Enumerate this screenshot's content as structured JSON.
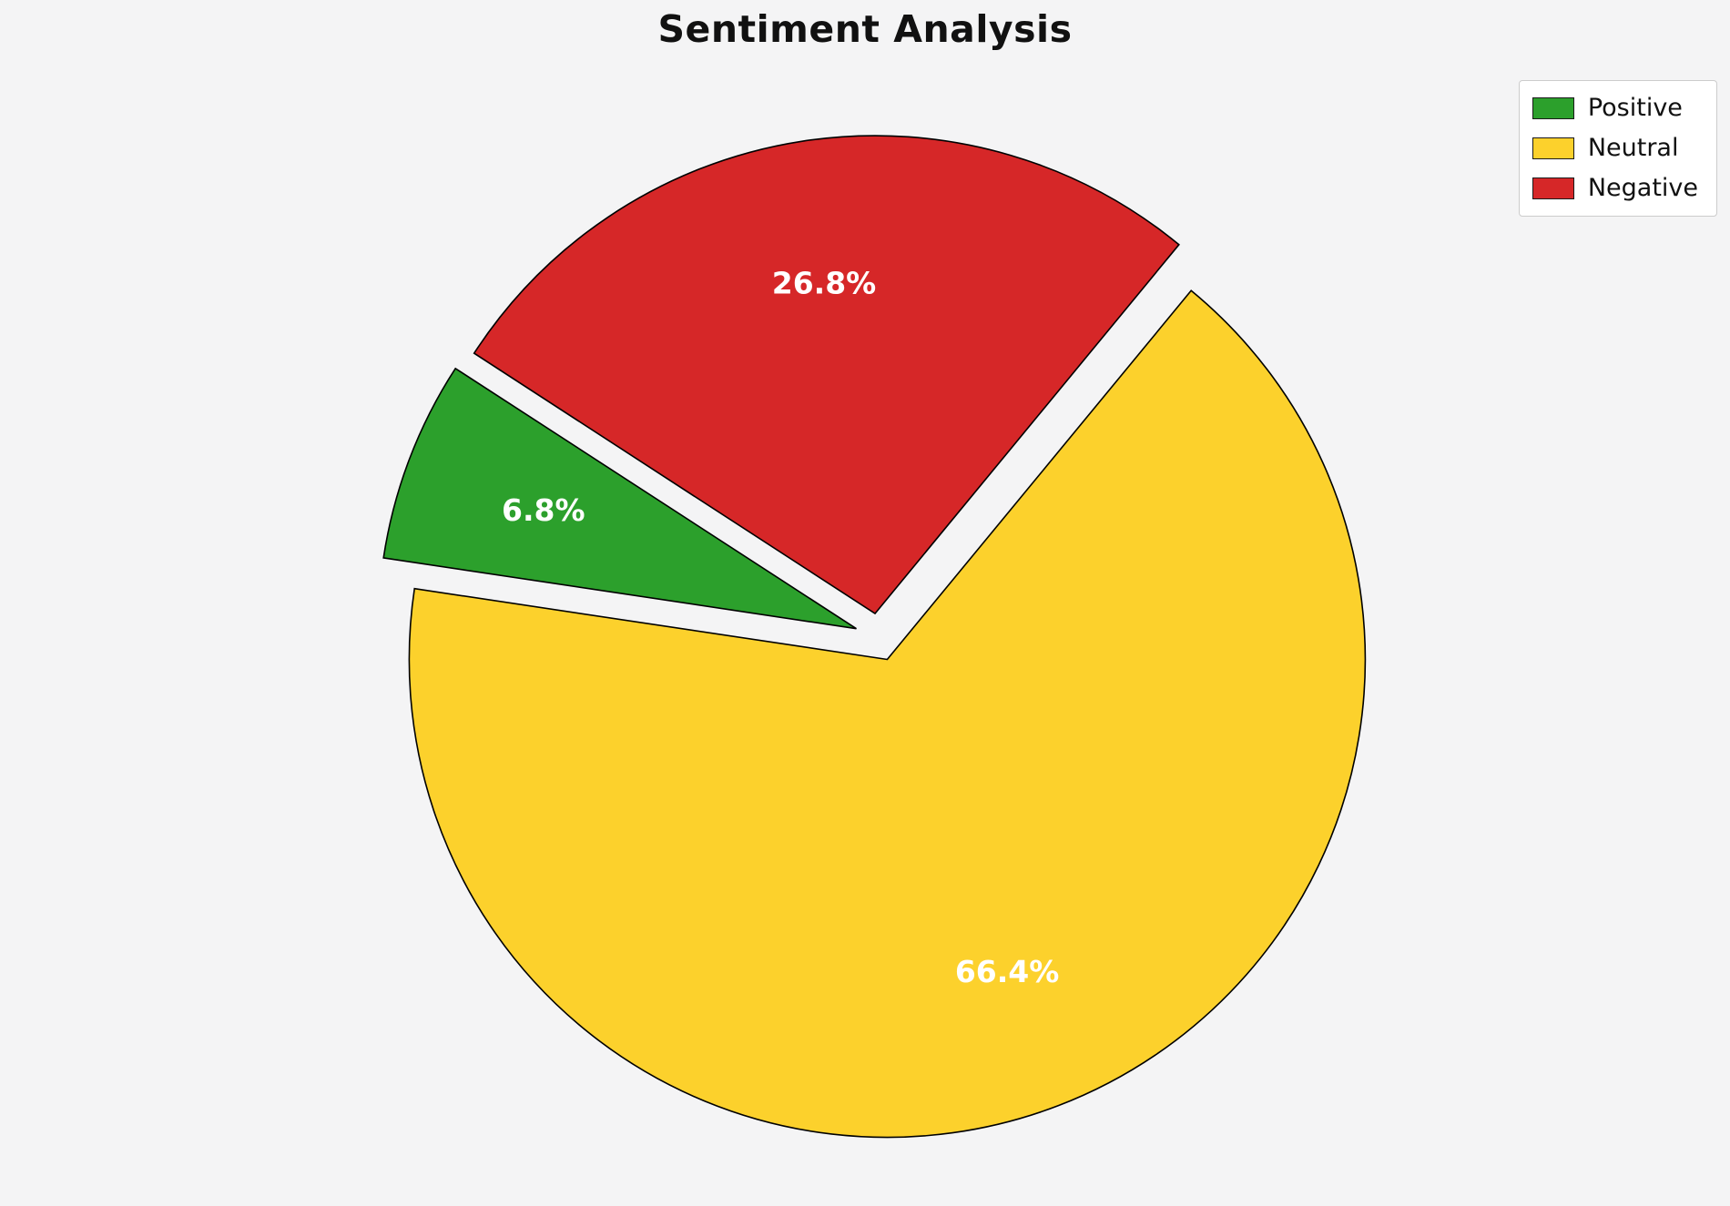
{
  "chart_data": {
    "type": "pie",
    "title": "Sentiment Analysis",
    "start_angle": 147,
    "counterclock": true,
    "explode": 0.05,
    "pct_distance": 0.7,
    "background_color": "#f4f4f5",
    "edge_color": "#000000",
    "label_color": "#ffffff",
    "legend_position": "upper right",
    "slices": [
      {
        "label": "Positive",
        "value": 6.8,
        "pct_label": "6.8%",
        "color": "#2ca02c",
        "explode": 0.05
      },
      {
        "label": "Neutral",
        "value": 66.4,
        "pct_label": "66.4%",
        "color": "#fcd12c",
        "explode": 0.05
      },
      {
        "label": "Negative",
        "value": 26.8,
        "pct_label": "26.8%",
        "color": "#d62728",
        "explode": 0.05
      }
    ]
  }
}
